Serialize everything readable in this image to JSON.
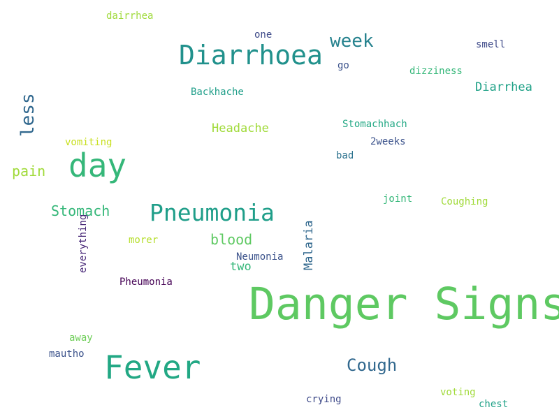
{
  "words": [
    {
      "text": "Danger Signs",
      "color": "#5ec962"
    },
    {
      "text": "Fever",
      "color": "#22a884"
    },
    {
      "text": "Diarrhoea",
      "color": "#21918c"
    },
    {
      "text": "day",
      "color": "#35b779"
    },
    {
      "text": "Pneumonia",
      "color": "#1f9e89"
    },
    {
      "text": "Cough",
      "color": "#31688e"
    },
    {
      "text": "week",
      "color": "#26828e"
    },
    {
      "text": "less",
      "color": "#31688e"
    },
    {
      "text": "Stomach",
      "color": "#35b779"
    },
    {
      "text": "pain",
      "color": "#a0da39"
    },
    {
      "text": "blood",
      "color": "#5ec962"
    },
    {
      "text": "Malaria",
      "color": "#31688e"
    },
    {
      "text": "Diarrhea",
      "color": "#1fa187"
    },
    {
      "text": "Headache",
      "color": "#a0da39"
    },
    {
      "text": "two",
      "color": "#35b779"
    },
    {
      "text": "Neumonia",
      "color": "#3b528b"
    },
    {
      "text": "Pheumonia",
      "color": "#440154"
    },
    {
      "text": "everything",
      "color": "#482878"
    },
    {
      "text": "Stomachhach",
      "color": "#22a884"
    },
    {
      "text": "Backhache",
      "color": "#1f9e89"
    },
    {
      "text": "dizziness",
      "color": "#35b779"
    },
    {
      "text": "smell",
      "color": "#3e4a89"
    },
    {
      "text": "go",
      "color": "#3b528b"
    },
    {
      "text": "one",
      "color": "#3e4a89"
    },
    {
      "text": "2weeks",
      "color": "#3b528b"
    },
    {
      "text": "bad",
      "color": "#2c728e"
    },
    {
      "text": "joint",
      "color": "#35b779"
    },
    {
      "text": "Coughing",
      "color": "#a0da39"
    },
    {
      "text": "vomiting",
      "color": "#c8e020"
    },
    {
      "text": "morer",
      "color": "#b5de2b"
    },
    {
      "text": "dairrhea",
      "color": "#9fda3a"
    },
    {
      "text": "away",
      "color": "#6ece58"
    },
    {
      "text": "mautho",
      "color": "#3b528b"
    },
    {
      "text": "crying",
      "color": "#3e4a89"
    },
    {
      "text": "voting",
      "color": "#a0da39"
    },
    {
      "text": "chest",
      "color": "#1fa187"
    }
  ]
}
